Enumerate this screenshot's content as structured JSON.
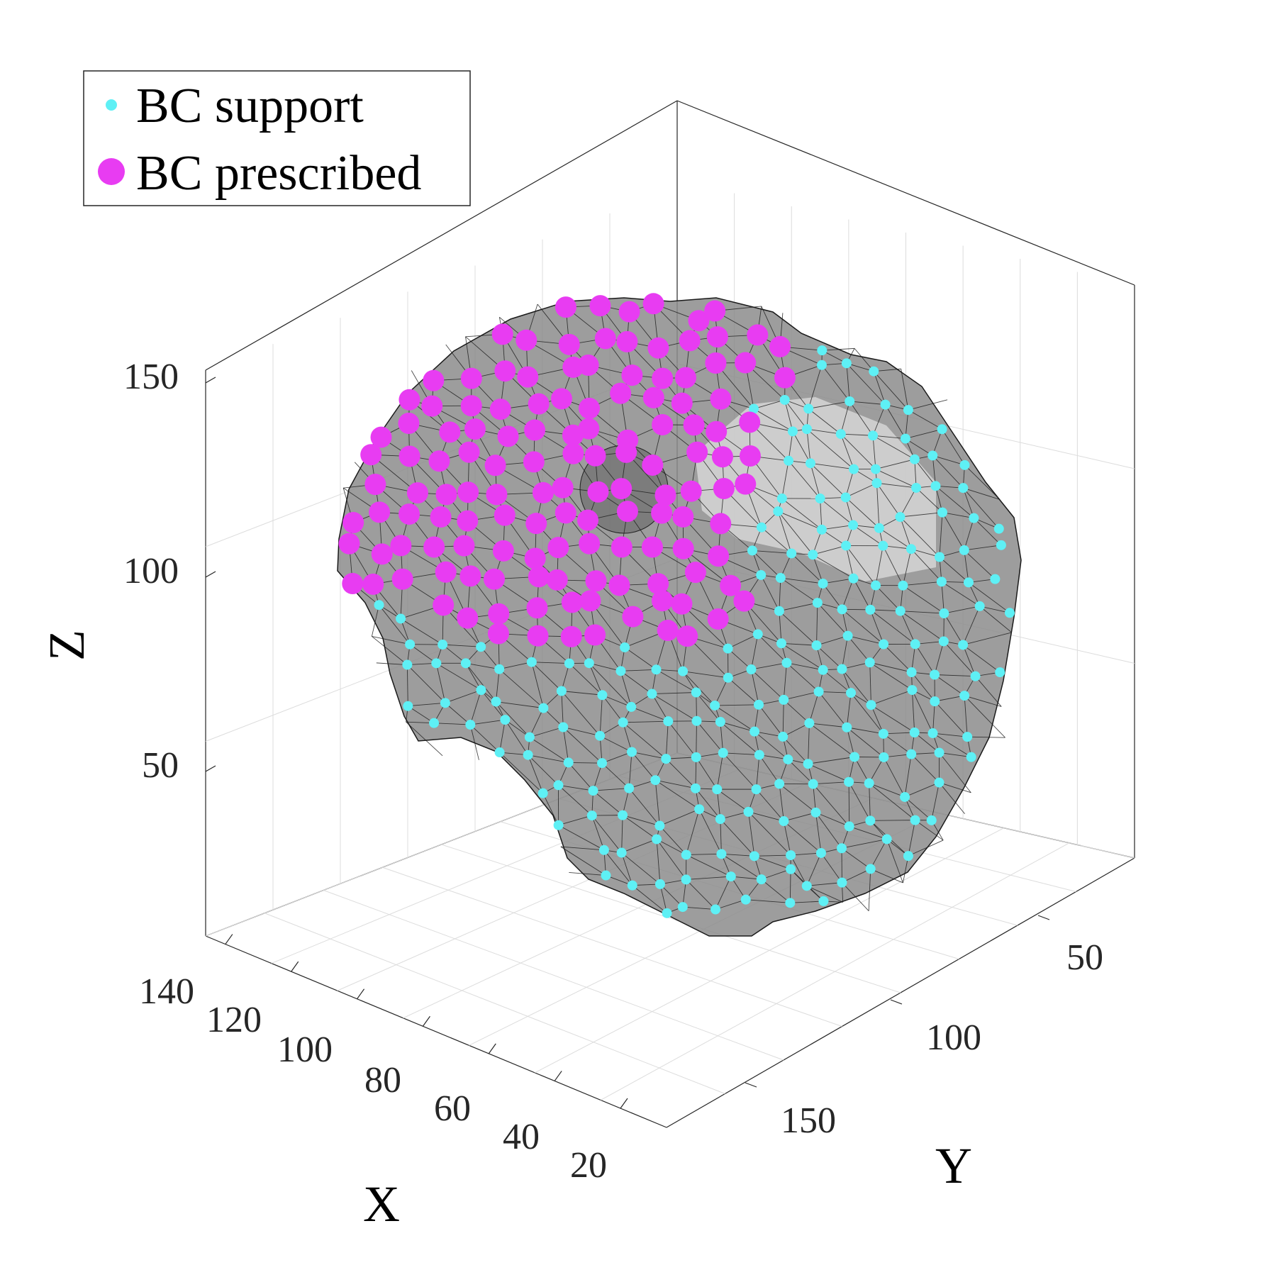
{
  "chart_data": {
    "type": "scatter",
    "projection": "3d",
    "title": "",
    "xlabel": "X",
    "ylabel": "Y",
    "zlabel": "Z",
    "x_ticks": [
      "140",
      "120",
      "100",
      "80",
      "60",
      "40",
      "20"
    ],
    "y_ticks": [
      "50",
      "100",
      "150"
    ],
    "z_ticks": [
      "50",
      "100",
      "150"
    ],
    "grid": true,
    "legend_position": "top-left",
    "legend": [
      {
        "label": "BC support",
        "color": "#5ef0f5",
        "marker": "small-dot"
      },
      {
        "label": "BC prescribed",
        "color": "#e83cf2",
        "marker": "large-dot"
      }
    ],
    "surface": {
      "description_color": "#808080",
      "edge_color": "#1a1a1a"
    },
    "colors": {
      "support": "#5ef0f5",
      "prescribed": "#e83cf2",
      "mesh_fill": "#8c8c8c",
      "mesh_light": "#d9d9d9"
    }
  }
}
